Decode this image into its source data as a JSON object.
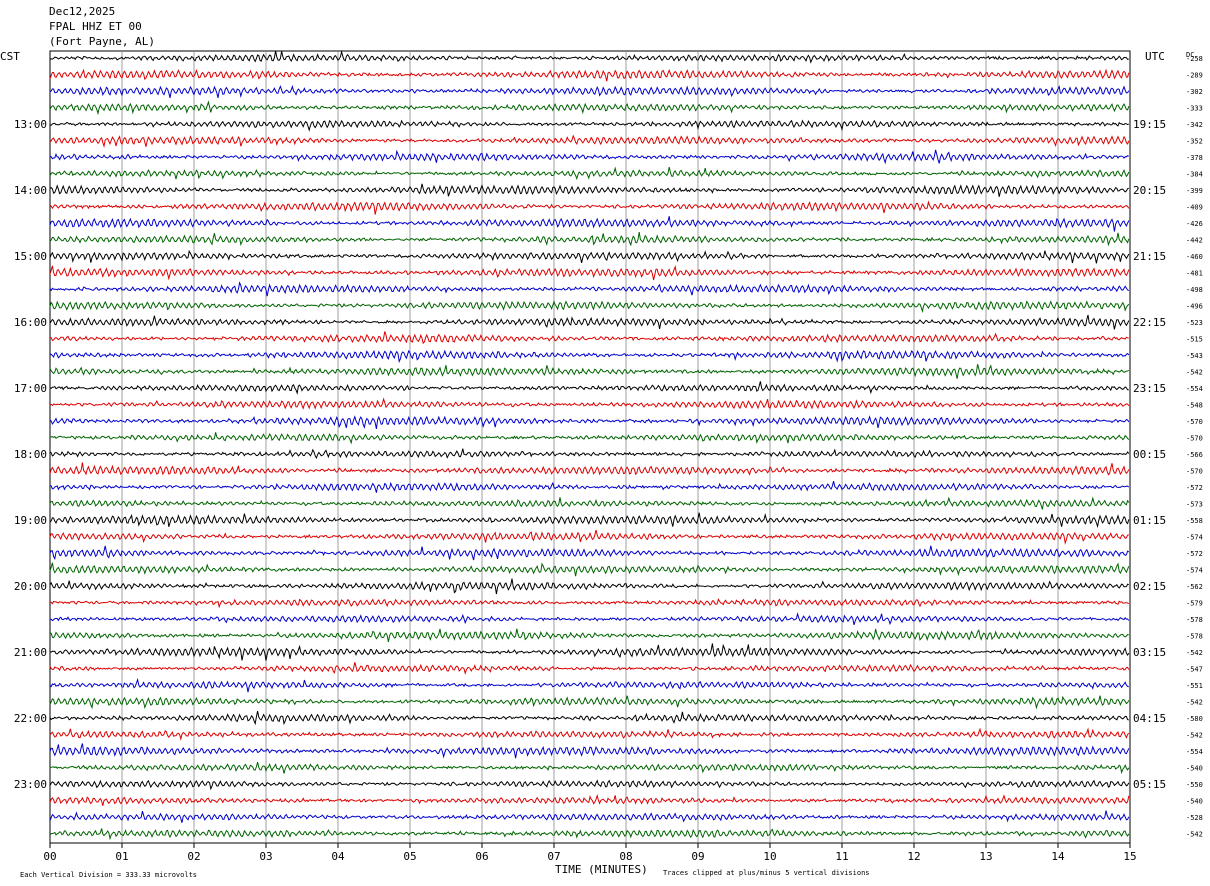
{
  "header": {
    "date": "Dec12,2025",
    "station": "FPAL HHZ ET 00",
    "location": "(Fort Payne, AL)"
  },
  "left_axis_title": "CST",
  "right_axis_title": "UTC",
  "dc_label": "DC",
  "footer": {
    "vertical_division": "Each Vertical Division =  333.33 microvolts",
    "x_axis_title": "TIME (MINUTES)",
    "clip_note": "Traces clipped at plus/minus 5 vertical divisions"
  },
  "colors": {
    "black": "#000000",
    "red": "#dd0000",
    "blue": "#0000cc",
    "green": "#006400",
    "grid": "#888888"
  },
  "chart_data": {
    "type": "helicorder",
    "x_tick_labels": [
      "00",
      "01",
      "02",
      "03",
      "04",
      "05",
      "06",
      "07",
      "08",
      "09",
      "10",
      "11",
      "12",
      "13",
      "14",
      "15"
    ],
    "xlim": [
      0,
      15
    ],
    "left_hour_labels": [
      "13:00",
      "14:00",
      "15:00",
      "16:00",
      "17:00",
      "18:00",
      "19:00",
      "20:00",
      "21:00",
      "22:00",
      "23:00"
    ],
    "right_hour_labels": [
      "19:15",
      "20:15",
      "21:15",
      "22:15",
      "23:15",
      "00:15",
      "01:15",
      "02:15",
      "03:15",
      "04:15",
      "05:15"
    ],
    "trace_colors": [
      "black",
      "red",
      "blue",
      "green"
    ],
    "dc_offsets": [
      -258,
      -289,
      -302,
      -333,
      -342,
      -352,
      -378,
      -384,
      -399,
      -409,
      -426,
      -442,
      -460,
      -481,
      -498,
      -496,
      -523,
      -515,
      -543,
      -542,
      -554,
      -548,
      -570,
      -570,
      -566,
      -570,
      -572,
      -573,
      -558,
      -574,
      -572,
      -574,
      -562,
      -579,
      -578,
      -578,
      -542,
      -547,
      -551,
      -542,
      -580,
      -542,
      -554,
      -540,
      -550,
      -540,
      -528,
      -542
    ]
  }
}
